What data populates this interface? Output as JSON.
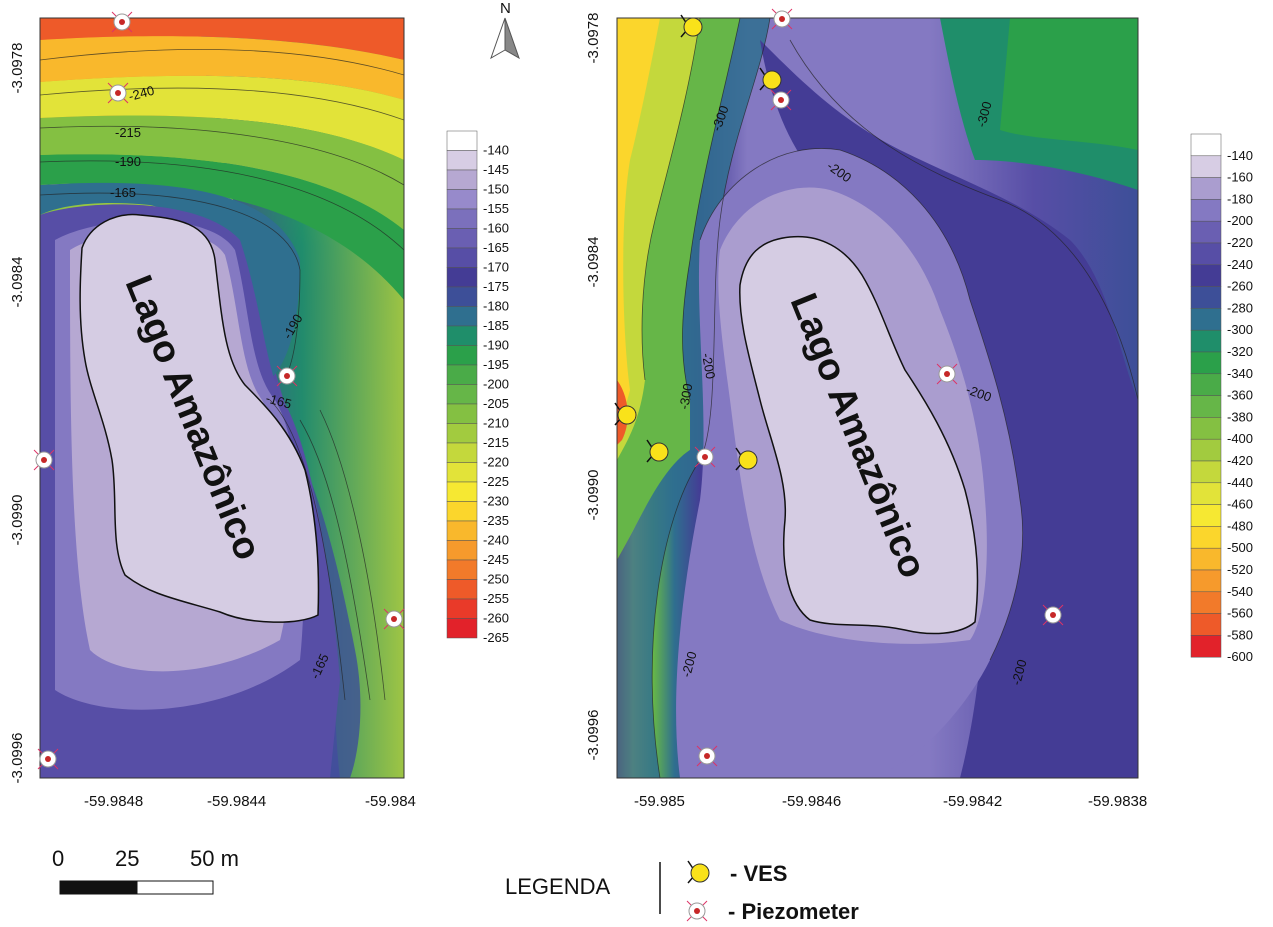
{
  "north_label": "N",
  "left_map": {
    "lake_label": "Lago Amazônico",
    "y_ticks": [
      "-3.0978",
      "-3.0984",
      "-3.0990",
      "-3.0996"
    ],
    "x_ticks": [
      "-59.9848",
      "-59.9844",
      "-59.984"
    ],
    "contour_labels": [
      "-240",
      "-215",
      "-190",
      "-165",
      "-190",
      "-165",
      "-165"
    ],
    "legend_values": [
      "-140",
      "-145",
      "-150",
      "-155",
      "-160",
      "-165",
      "-170",
      "-175",
      "-180",
      "-185",
      "-190",
      "-195",
      "-200",
      "-205",
      "-210",
      "-215",
      "-220",
      "-225",
      "-230",
      "-235",
      "-240",
      "-245",
      "-250",
      "-255",
      "-260",
      "-265"
    ],
    "legend_colors": [
      "#ffffff",
      "#d7cde4",
      "#b6a8d2",
      "#978acb",
      "#7b70bc",
      "#6a5fb2",
      "#574ea6",
      "#443c95",
      "#3d4f98",
      "#2f6f8f",
      "#1f8e6a",
      "#2ba04a",
      "#4aab48",
      "#66b648",
      "#84c042",
      "#a2cb3f",
      "#c4d83c",
      "#e2e339",
      "#f6e832",
      "#fbd62c",
      "#f9b82c",
      "#f69a2c",
      "#f27a2a",
      "#ee5a29",
      "#e93a29",
      "#e2222a"
    ]
  },
  "right_map": {
    "lake_label": "Lago Amazônico",
    "y_ticks": [
      "-3.0978",
      "-3.0984",
      "-3.0990",
      "-3.0996"
    ],
    "x_ticks": [
      "-59.985",
      "-59.9846",
      "-59.9842",
      "-59.9838"
    ],
    "contour_labels": [
      "-300",
      "-300",
      "-200",
      "-200",
      "-300",
      "-200",
      "-200",
      "-200"
    ],
    "legend_values": [
      "-140",
      "-160",
      "-180",
      "-200",
      "-220",
      "-240",
      "-260",
      "-280",
      "-300",
      "-320",
      "-340",
      "-360",
      "-380",
      "-400",
      "-420",
      "-440",
      "-460",
      "-480",
      "-500",
      "-520",
      "-540",
      "-560",
      "-580",
      "-600"
    ],
    "legend_colors": [
      "#ffffff",
      "#d7cde4",
      "#aa9dcf",
      "#8479c2",
      "#6a5fb2",
      "#574ea6",
      "#443c95",
      "#3d4f98",
      "#2f6f8f",
      "#1f8e6a",
      "#2ba04a",
      "#4aab48",
      "#66b648",
      "#84c042",
      "#a2cb3f",
      "#c4d83c",
      "#e2e339",
      "#f6e832",
      "#fbd62c",
      "#f9b82c",
      "#f69a2c",
      "#f27a2a",
      "#ee5a29",
      "#e2222a"
    ]
  },
  "scale_bar": {
    "labels": [
      "0",
      "25",
      "50 m"
    ]
  },
  "legend": {
    "title": "LEGENDA",
    "ves_label": "- VES",
    "piezometer_label": "- Piezometer"
  },
  "colors": {
    "lake": "#d5cce3",
    "ves": "#f9e21a",
    "piezometer_dot": "#c62828"
  }
}
